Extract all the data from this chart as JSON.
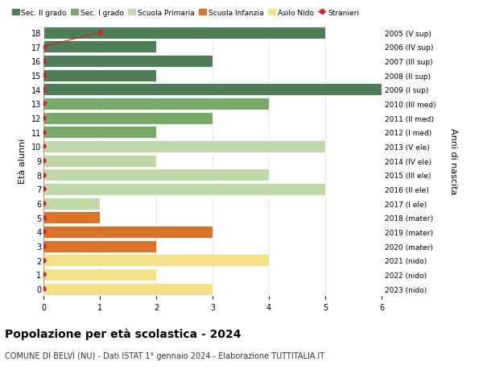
{
  "ages": [
    18,
    17,
    16,
    15,
    14,
    13,
    12,
    11,
    10,
    9,
    8,
    7,
    6,
    5,
    4,
    3,
    2,
    1,
    0
  ],
  "right_labels": [
    "2005 (V sup)",
    "2006 (IV sup)",
    "2007 (III sup)",
    "2008 (II sup)",
    "2009 (I sup)",
    "2010 (III med)",
    "2011 (II med)",
    "2012 (I med)",
    "2013 (V ele)",
    "2014 (IV ele)",
    "2015 (III ele)",
    "2016 (II ele)",
    "2017 (I ele)",
    "2018 (mater)",
    "2019 (mater)",
    "2020 (mater)",
    "2021 (nido)",
    "2022 (nido)",
    "2023 (nido)"
  ],
  "bar_values": [
    5,
    2,
    3,
    2,
    6,
    4,
    3,
    2,
    5,
    2,
    4,
    5,
    1,
    1,
    3,
    2,
    4,
    2,
    3
  ],
  "bar_colors": [
    "#4e7d57",
    "#4e7d57",
    "#4e7d57",
    "#4e7d57",
    "#4e7d57",
    "#7aaa6a",
    "#7aaa6a",
    "#7aaa6a",
    "#c0d9a8",
    "#c0d9a8",
    "#c0d9a8",
    "#c0d9a8",
    "#c0d9a8",
    "#d9732a",
    "#d9732a",
    "#d9732a",
    "#f5e08a",
    "#f5e08a",
    "#f5e08a"
  ],
  "stranieri_ages": [
    18,
    17,
    16,
    15,
    14,
    13,
    12,
    11,
    10,
    9,
    8,
    7,
    6,
    5,
    4,
    3,
    2,
    1,
    0
  ],
  "stranieri_x": [
    1,
    0,
    0,
    0,
    0,
    0,
    0,
    0,
    0,
    0,
    0,
    0,
    0,
    0,
    0,
    0,
    0,
    0,
    0
  ],
  "legend_labels": [
    "Sec. II grado",
    "Sec. I grado",
    "Scuola Primaria",
    "Scuola Infanzia",
    "Asilo Nido",
    "Stranieri"
  ],
  "legend_colors": [
    "#4e7d57",
    "#7aaa6a",
    "#c0d9a8",
    "#d9732a",
    "#f5e08a",
    "#cc2222"
  ],
  "ylabel": "Età alunni",
  "right_ylabel": "Anni di nascita",
  "title": "Popolazione per età scolastica - 2024",
  "subtitle": "COMUNE DI BELVÌ (NU) - Dati ISTAT 1° gennaio 2024 - Elaborazione TUTTITALIA.IT",
  "xlim": [
    0,
    6
  ],
  "ylim": [
    -0.5,
    18.5
  ],
  "bg_color": "#ffffff",
  "grid_color": "#cccccc",
  "bar_height": 0.85
}
